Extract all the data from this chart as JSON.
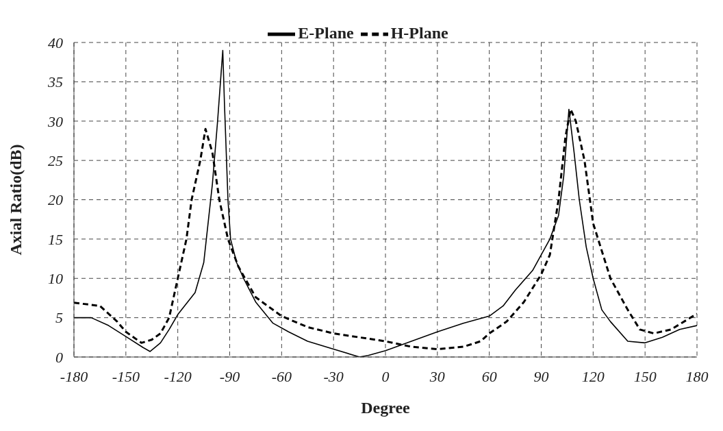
{
  "chart_data": {
    "type": "line",
    "xlabel": "Degree",
    "ylabel": "Axial Ratio(dB)",
    "xlim": [
      -180,
      180
    ],
    "xticks": [
      -180,
      -150,
      -120,
      -90,
      -60,
      -30,
      0,
      30,
      60,
      90,
      120,
      150,
      180
    ],
    "ylim": [
      0,
      40
    ],
    "yticks": [
      0,
      5,
      10,
      15,
      20,
      25,
      30,
      35,
      40
    ],
    "grid": true,
    "legend": "top",
    "marker": "none",
    "series": [
      {
        "name": "E-Plane",
        "color": "#000000",
        "line_style": "solid",
        "x": [
          -180,
          -170,
          -160,
          -150,
          -140,
          -136,
          -130,
          -125,
          -120,
          -110,
          -105,
          -100,
          -97,
          -95,
          -94,
          -93,
          -91,
          -89.5,
          -86,
          -82,
          -75,
          -65,
          -56,
          -45,
          -30,
          -15,
          -10,
          0,
          15,
          30,
          45,
          60,
          68,
          75,
          85,
          90,
          95,
          100,
          103,
          106,
          109,
          112,
          116,
          120,
          125,
          130,
          140,
          150,
          160,
          170,
          180
        ],
        "values": [
          5,
          5,
          4,
          2.6,
          1.2,
          0.7,
          1.8,
          3.5,
          5.4,
          8.2,
          12,
          22,
          30,
          36,
          39,
          32,
          20,
          15,
          12,
          10,
          7,
          4.3,
          3.2,
          2,
          1,
          0,
          0.2,
          0.8,
          2,
          3.2,
          4.3,
          5.2,
          6.5,
          8.5,
          11,
          13,
          15,
          18,
          23,
          31.5,
          26,
          20,
          14,
          10,
          6,
          4.5,
          2,
          1.8,
          2.5,
          3.5,
          4
        ]
      },
      {
        "name": "H-Plane",
        "color": "#000000",
        "line_style": "dashed",
        "x": [
          -180,
          -165,
          -155,
          -150,
          -141,
          -135,
          -130,
          -125,
          -120,
          -115,
          -112,
          -107,
          -104,
          -100,
          -96,
          -91,
          -85,
          -75,
          -60,
          -45,
          -30,
          -15,
          0,
          15,
          30,
          45,
          55,
          60,
          70,
          80,
          90,
          95,
          100,
          104,
          107,
          110,
          115,
          120,
          130,
          140,
          147,
          155,
          165,
          180
        ],
        "values": [
          6.9,
          6.5,
          4.5,
          3.2,
          1.8,
          2.2,
          3,
          5,
          10,
          15,
          20,
          25,
          29,
          26,
          20,
          15,
          11.5,
          7.6,
          5.2,
          3.8,
          3,
          2.5,
          2,
          1.3,
          1,
          1.3,
          2,
          3,
          4.5,
          7,
          10.5,
          13,
          20,
          28,
          31.5,
          30,
          25,
          17,
          10,
          6,
          3.5,
          3,
          3.5,
          5.5
        ]
      }
    ]
  }
}
